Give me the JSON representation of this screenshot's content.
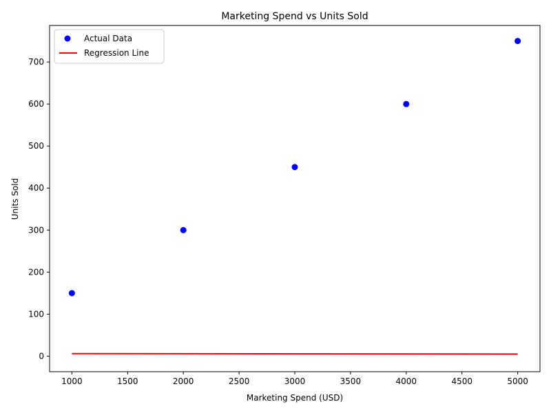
{
  "chart_data": {
    "type": "scatter",
    "title": "Marketing Spend vs Units Sold",
    "xlabel": "Marketing Spend (USD)",
    "ylabel": "Units Sold",
    "xlim": [
      800,
      5200
    ],
    "ylim": [
      -37,
      787
    ],
    "x_ticks": [
      1000,
      1500,
      2000,
      2500,
      3000,
      3500,
      4000,
      4500,
      5000
    ],
    "y_ticks": [
      0,
      100,
      200,
      300,
      400,
      500,
      600,
      700
    ],
    "grid": false,
    "legend_position": "top-left",
    "series": [
      {
        "name": "Actual Data",
        "kind": "scatter",
        "color": "#0000ff",
        "x": [
          1000,
          2000,
          3000,
          4000,
          5000
        ],
        "y": [
          150,
          300,
          450,
          600,
          750
        ]
      },
      {
        "name": "Regression Line",
        "kind": "line",
        "color": "#ff0000",
        "x": [
          1000,
          5000
        ],
        "y": [
          6,
          5
        ]
      }
    ]
  }
}
